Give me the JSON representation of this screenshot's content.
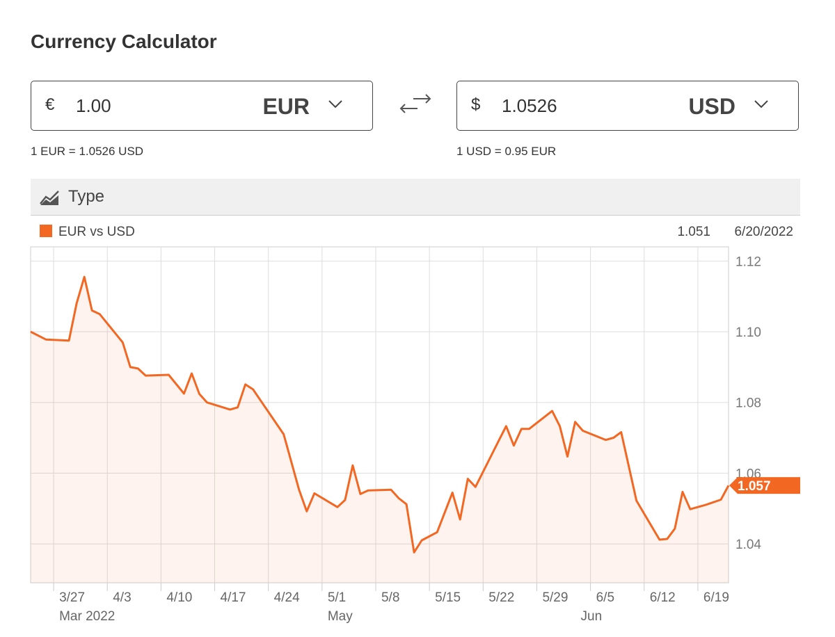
{
  "calculator": {
    "title": "Currency Calculator",
    "from": {
      "symbol": "€",
      "amount": "1.00",
      "currency": "EUR",
      "rate_text": "1 EUR = 1.0526 USD"
    },
    "to": {
      "symbol": "$",
      "amount": "1.0526",
      "currency": "USD",
      "rate_text": "1 USD = 0.95 EUR"
    },
    "type_label": "Type"
  },
  "chart_data": {
    "type": "line",
    "series": [
      {
        "name": "EUR vs USD",
        "color": "#f26722",
        "x": [
          "2022-03-24",
          "2022-03-26",
          "2022-03-29",
          "2022-03-30",
          "2022-03-31",
          "2022-04-01",
          "2022-04-02",
          "2022-04-05",
          "2022-04-06",
          "2022-04-07",
          "2022-04-08",
          "2022-04-11",
          "2022-04-13",
          "2022-04-14",
          "2022-04-15",
          "2022-04-16",
          "2022-04-19",
          "2022-04-20",
          "2022-04-21",
          "2022-04-22",
          "2022-04-26",
          "2022-04-28",
          "2022-04-29",
          "2022-04-30",
          "2022-05-03",
          "2022-05-04",
          "2022-05-05",
          "2022-05-06",
          "2022-05-07",
          "2022-05-10",
          "2022-05-11",
          "2022-05-12",
          "2022-05-13",
          "2022-05-14",
          "2022-05-16",
          "2022-05-18",
          "2022-05-19",
          "2022-05-20",
          "2022-05-21",
          "2022-05-24",
          "2022-05-25",
          "2022-05-26",
          "2022-05-27",
          "2022-05-28",
          "2022-05-31",
          "2022-06-01",
          "2022-06-02",
          "2022-06-03",
          "2022-06-04",
          "2022-06-07",
          "2022-06-08",
          "2022-06-09",
          "2022-06-11",
          "2022-06-14",
          "2022-06-15",
          "2022-06-16",
          "2022-06-17",
          "2022-06-18",
          "2022-06-20",
          "2022-06-22",
          "2022-06-23"
        ],
        "values": [
          1.1,
          1.0978,
          1.0975,
          1.108,
          1.1155,
          1.106,
          1.105,
          1.097,
          1.09,
          1.0896,
          1.0876,
          1.0878,
          1.0825,
          1.0882,
          1.0824,
          1.08,
          1.078,
          1.0786,
          1.0851,
          1.0837,
          1.071,
          1.0553,
          1.0492,
          1.0543,
          1.0504,
          1.0524,
          1.0622,
          1.0541,
          1.0551,
          1.0553,
          1.0529,
          1.0512,
          1.0376,
          1.041,
          1.0433,
          1.0545,
          1.0469,
          1.0584,
          1.0561,
          1.069,
          1.0733,
          1.0678,
          1.0725,
          1.0725,
          1.0776,
          1.0733,
          1.0647,
          1.0745,
          1.072,
          1.0694,
          1.07,
          1.0716,
          1.0522,
          1.0412,
          1.0414,
          1.0443,
          1.0547,
          1.0498,
          1.051,
          1.0525,
          1.0565
        ]
      }
    ],
    "last_label": "1.057",
    "hover_value": "1.051",
    "hover_date": "6/20/2022",
    "xlim": [
      "2022-03-24",
      "2022-06-23"
    ],
    "xticks": [
      {
        "value": "2022-03-27",
        "label": "3/27"
      },
      {
        "value": "2022-04-03",
        "label": "4/3"
      },
      {
        "value": "2022-04-10",
        "label": "4/10"
      },
      {
        "value": "2022-04-17",
        "label": "4/17"
      },
      {
        "value": "2022-04-24",
        "label": "4/24"
      },
      {
        "value": "2022-05-01",
        "label": "5/1"
      },
      {
        "value": "2022-05-08",
        "label": "5/8"
      },
      {
        "value": "2022-05-15",
        "label": "5/15"
      },
      {
        "value": "2022-05-22",
        "label": "5/22"
      },
      {
        "value": "2022-05-29",
        "label": "5/29"
      },
      {
        "value": "2022-06-05",
        "label": "6/5"
      },
      {
        "value": "2022-06-12",
        "label": "6/12"
      },
      {
        "value": "2022-06-19",
        "label": "6/19"
      }
    ],
    "month_labels": [
      {
        "value": "2022-03-27",
        "label": "Mar 2022"
      },
      {
        "value": "2022-05-01",
        "label": "May"
      },
      {
        "value": "2022-06-03",
        "label": "Jun"
      }
    ],
    "ylim": [
      1.029,
      1.124
    ],
    "yticks": [
      1.04,
      1.06,
      1.08,
      {
        "value": 1.1,
        "label": "1.10"
      },
      1.12
    ],
    "grid": true
  }
}
